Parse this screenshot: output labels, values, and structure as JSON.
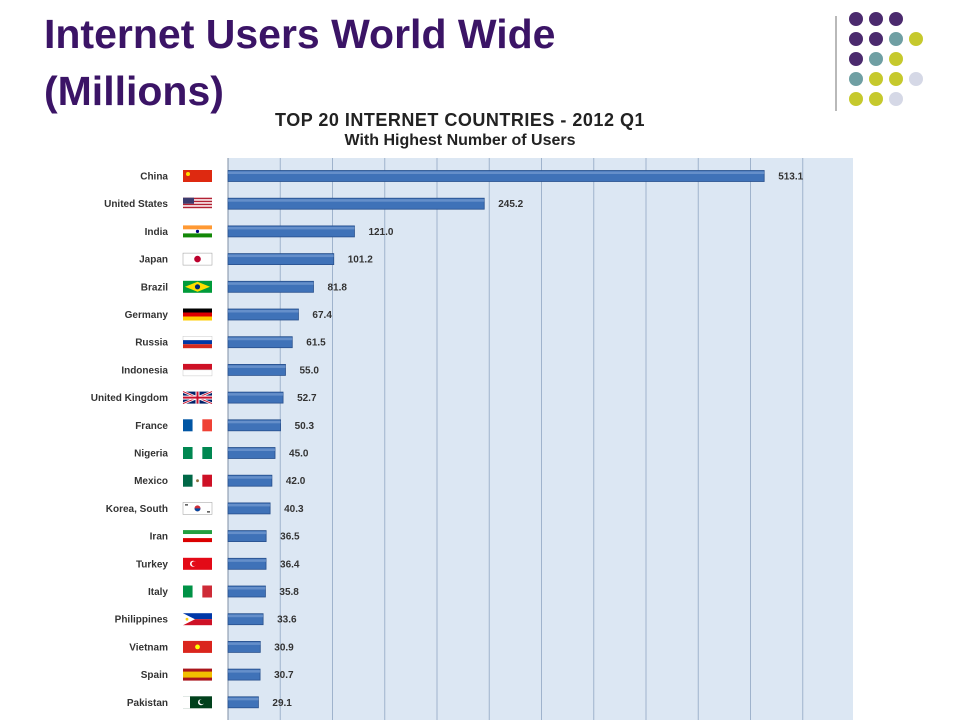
{
  "slide": {
    "title_line1": "Internet Users World Wide",
    "title_line2": "(Millions)",
    "decor": {
      "dot_colors": [
        "#4b2a6e",
        "#6f9fa3",
        "#c6c92d",
        "#d5d8e6"
      ],
      "dot_rows": [
        [
          "#4b2a6e",
          "#4b2a6e",
          "#4b2a6e",
          "",
          ""
        ],
        [
          "#4b2a6e",
          "#4b2a6e",
          "#6f9fa3",
          "#c6c92d",
          ""
        ],
        [
          "#4b2a6e",
          "#6f9fa3",
          "#c6c92d",
          "",
          ""
        ],
        [
          "#6f9fa3",
          "#c6c92d",
          "#c6c92d",
          "#d5d8e6",
          ""
        ],
        [
          "#c6c92d",
          "#c6c92d",
          "#d5d8e6",
          "",
          ""
        ]
      ]
    }
  },
  "chart_data": {
    "type": "bar",
    "orientation": "horizontal",
    "title": "TOP 20 INTERNET COUNTRIES  - 2012 Q1",
    "subtitle": "With Highest Number of Users",
    "categories": [
      "China",
      "United States",
      "India",
      "Japan",
      "Brazil",
      "Germany",
      "Russia",
      "Indonesia",
      "United Kingdom",
      "France",
      "Nigeria",
      "Mexico",
      "Korea, South",
      "Iran",
      "Turkey",
      "Italy",
      "Philippines",
      "Vietnam",
      "Spain",
      "Pakistan"
    ],
    "values": [
      513.1,
      245.2,
      121.0,
      101.2,
      81.8,
      67.4,
      61.5,
      55.0,
      52.7,
      50.3,
      45.0,
      42.0,
      40.3,
      36.5,
      36.4,
      35.8,
      33.6,
      30.9,
      30.7,
      29.1
    ],
    "value_labels": [
      "513.1",
      "245.2",
      "121.0",
      "101.2",
      "81.8",
      "67.4",
      "61.5",
      "55.0",
      "52.7",
      "50.3",
      "45.0",
      "42.0",
      "40.3",
      "36.5",
      "36.4",
      "35.8",
      "33.6",
      "30.9",
      "30.7",
      "29.1"
    ],
    "flags": [
      "china-flag-icon",
      "united-states-flag-icon",
      "india-flag-icon",
      "japan-flag-icon",
      "brazil-flag-icon",
      "germany-flag-icon",
      "russia-flag-icon",
      "indonesia-flag-icon",
      "united-kingdom-flag-icon",
      "france-flag-icon",
      "nigeria-flag-icon",
      "mexico-flag-icon",
      "korea-south-flag-icon",
      "iran-flag-icon",
      "turkey-flag-icon",
      "italy-flag-icon",
      "philippines-flag-icon",
      "vietnam-flag-icon",
      "spain-flag-icon",
      "pakistan-flag-icon"
    ],
    "xlim": [
      0,
      600
    ],
    "x_gridline_step": 50,
    "grid": true,
    "xlabel": "",
    "ylabel": "",
    "colors": {
      "bar": "#3f72b8",
      "bar_edge": "#274f8c",
      "plot_background": "#dce7f3",
      "gridline": "#9fb3cc"
    }
  }
}
